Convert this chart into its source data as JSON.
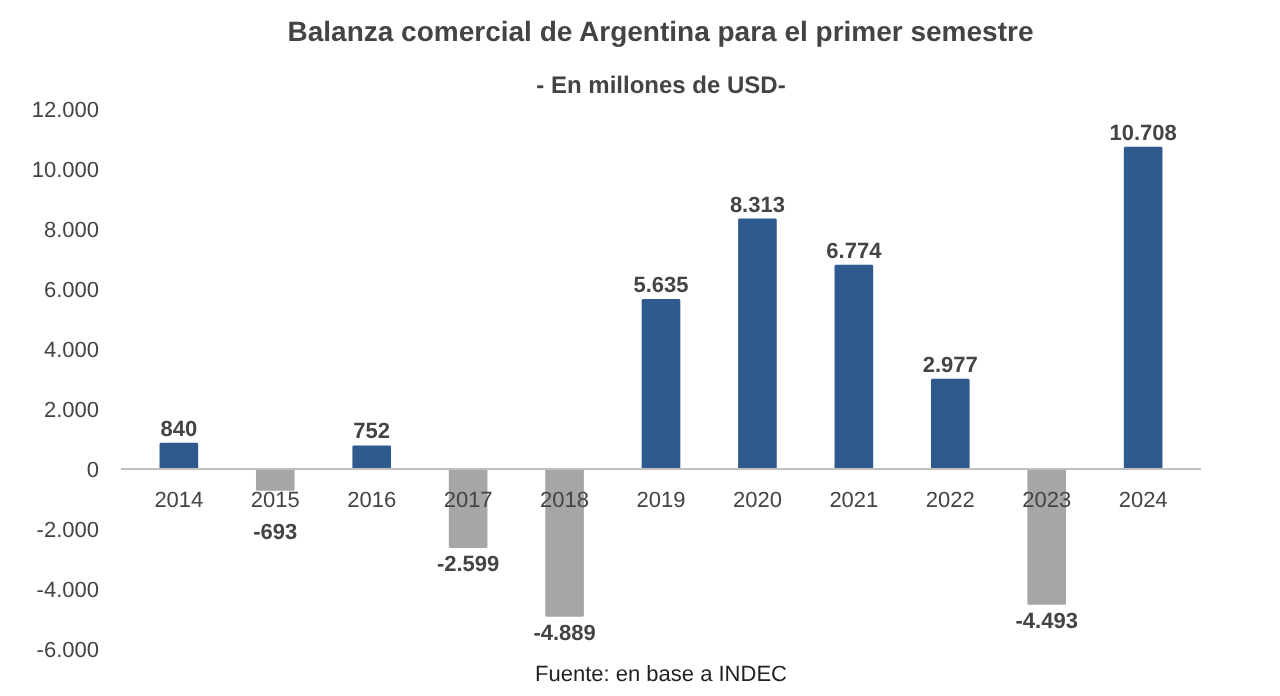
{
  "chart_data": {
    "type": "bar",
    "title": "Balanza comercial de Argentina para el primer semestre",
    "subtitle": "- En millones de USD-",
    "categories": [
      "2014",
      "2015",
      "2016",
      "2017",
      "2018",
      "2019",
      "2020",
      "2021",
      "2022",
      "2023",
      "2024"
    ],
    "values": [
      840,
      -693,
      752,
      -2599,
      -4889,
      5635,
      8313,
      6774,
      2977,
      -4493,
      10708
    ],
    "colors": [
      "#2f5a8e",
      "#a6a6a6",
      "#2f5a8e",
      "#a6a6a6",
      "#a6a6a6",
      "#2f5a8e",
      "#2f5a8e",
      "#2f5a8e",
      "#2f5a8e",
      "#a6a6a6",
      "#2f5a8e"
    ],
    "value_labels": [
      "840",
      "-693",
      "752",
      "-2.599",
      "-4.889",
      "5.635",
      "8.313",
      "6.774",
      "2.977",
      "-4.493",
      "10.708"
    ],
    "ylim": [
      -6000,
      12000
    ],
    "yticks": [
      {
        "value": -6000,
        "label": "-6.000"
      },
      {
        "value": -4000,
        "label": "-4.000"
      },
      {
        "value": -2000,
        "label": "-2.000"
      },
      {
        "value": 0,
        "label": "0"
      },
      {
        "value": 2000,
        "label": "2.000"
      },
      {
        "value": 4000,
        "label": "4.000"
      },
      {
        "value": 6000,
        "label": "6.000"
      },
      {
        "value": 8000,
        "label": "8.000"
      },
      {
        "value": 10000,
        "label": "10.000"
      },
      {
        "value": 12000,
        "label": "12.000"
      }
    ],
    "grid": false,
    "annotations": [
      "Fuente: en base a INDEC"
    ]
  }
}
